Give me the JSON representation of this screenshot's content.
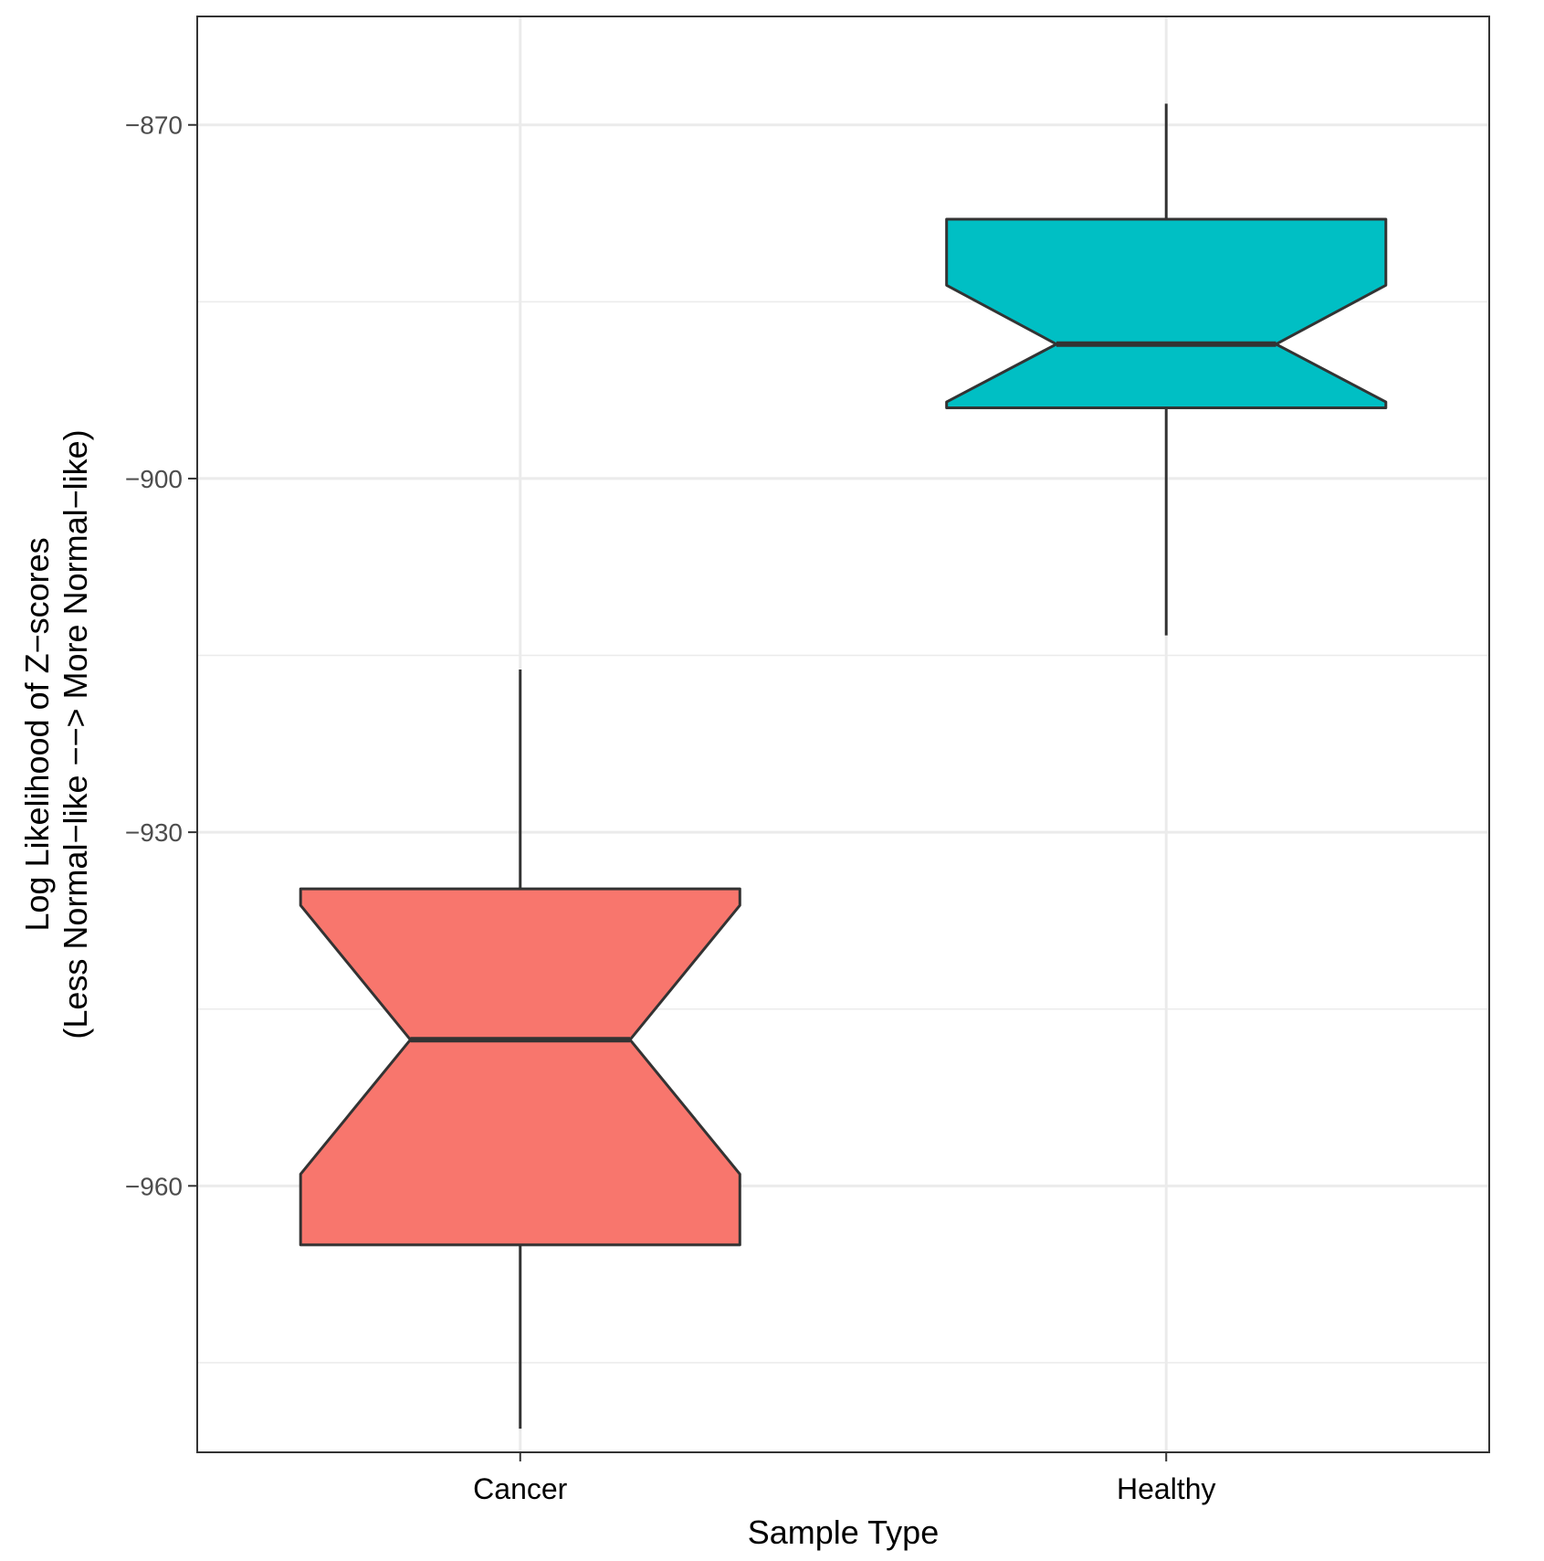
{
  "chart_data": {
    "type": "boxplot",
    "notched": true,
    "xlabel": "Sample Type",
    "ylabel_line1": "Log Likelihood of Z−scores",
    "ylabel_line2": "(Less Normal−like −−> More Normal−like)",
    "ylim": [
      -982.6,
      -860.8
    ],
    "yticks": [
      -870,
      -900,
      -930,
      -960
    ],
    "ytick_labels": [
      "−870",
      "−900",
      "−930",
      "−960"
    ],
    "minor_yticks": [
      -885,
      -915,
      -945,
      -975
    ],
    "categories": [
      "Cancer",
      "Healthy"
    ],
    "boxes": [
      {
        "name": "Cancer",
        "color": "#F8766D",
        "whisker_low": -980.6,
        "q1": -965.0,
        "median": -947.6,
        "q3": -934.8,
        "whisker_high": -916.2,
        "notch_low": -959.0,
        "notch_high": -936.2
      },
      {
        "name": "Healthy",
        "color": "#00BFC4",
        "whisker_low": -913.3,
        "q1": -894.0,
        "median": -888.6,
        "q3": -878.0,
        "whisker_high": -868.2,
        "notch_low": -893.5,
        "notch_high": -883.6
      }
    ]
  }
}
